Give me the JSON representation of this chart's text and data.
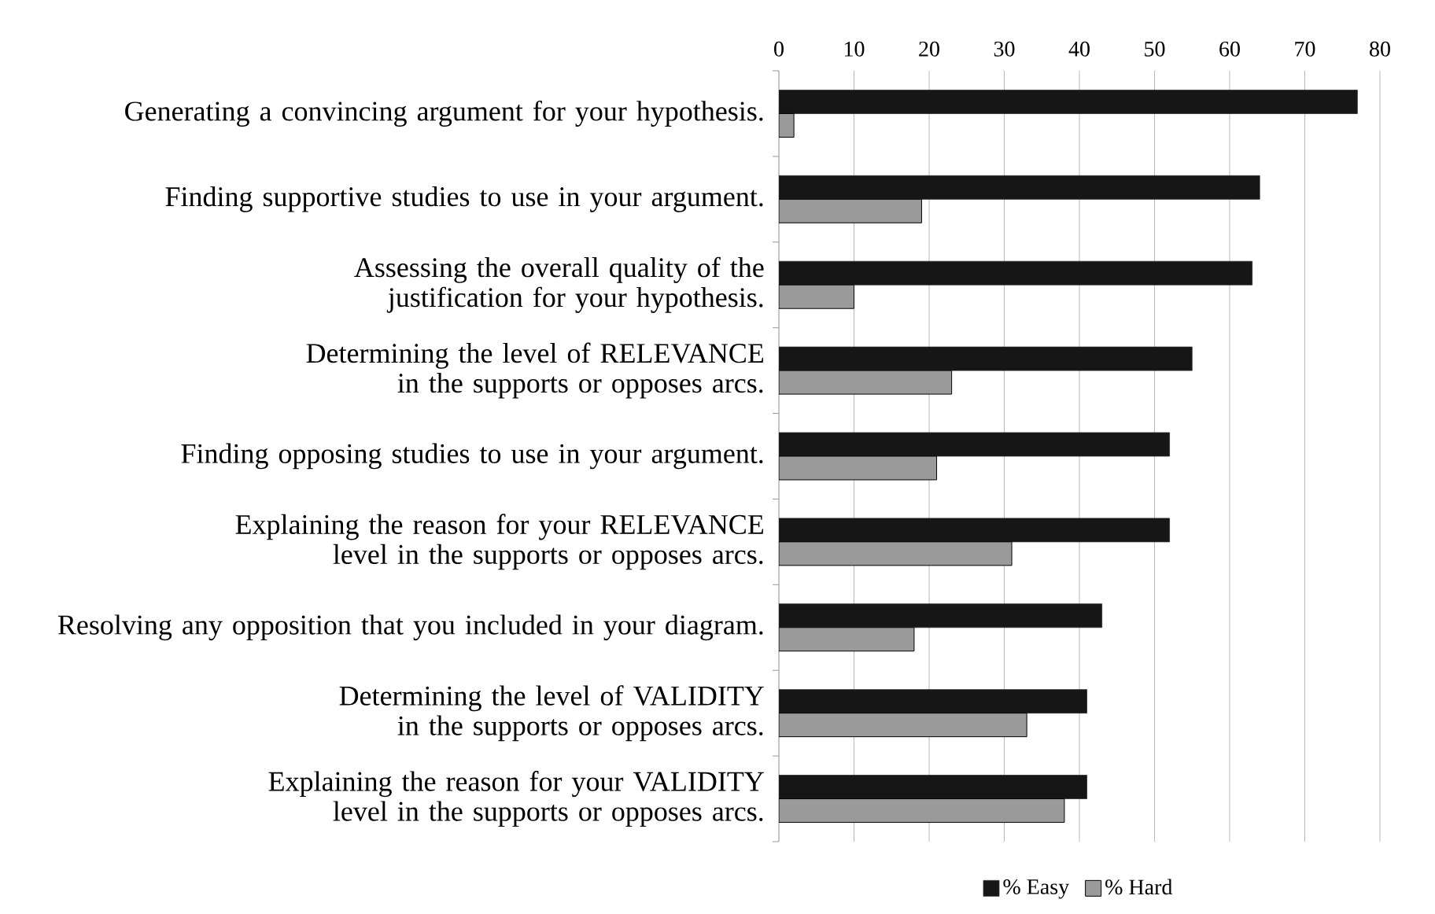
{
  "chart_data": {
    "type": "bar",
    "orientation": "horizontal",
    "categories": [
      "Generating a convincing argument for your hypothesis.",
      "Finding supportive studies to use in your argument.",
      "Assessing the overall quality of the justification for your hypothesis.",
      "Determining the level of RELEVANCE in the supports or opposes arcs.",
      "Finding opposing studies to use in your argument.",
      "Explaining the reason for your RELEVANCE level in the supports or opposes arcs.",
      "Resolving any opposition that you included in your diagram.",
      "Determining the level of VALIDITY in the supports or opposes arcs.",
      "Explaining the reason for your VALIDITY level in the supports or opposes arcs."
    ],
    "series": [
      {
        "name": "% Easy",
        "color": "#161616",
        "values": [
          77,
          64,
          63,
          55,
          52,
          52,
          43,
          41,
          41
        ]
      },
      {
        "name": "% Hard",
        "color": "#9a9a9a",
        "values": [
          2,
          19,
          10,
          23,
          21,
          31,
          18,
          33,
          38
        ]
      }
    ],
    "xlim": [
      0,
      80
    ],
    "xticks": [
      0,
      10,
      20,
      30,
      40,
      50,
      60,
      70,
      80
    ],
    "grid": "x",
    "legend": "bottom"
  }
}
